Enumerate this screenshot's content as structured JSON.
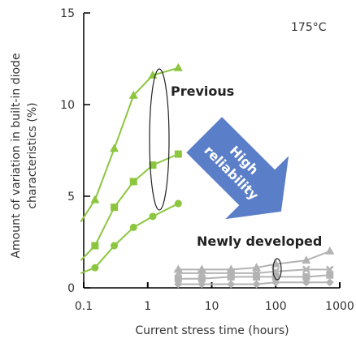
{
  "chart_data": {
    "type": "line",
    "xlabel": "Current stress time (hours)",
    "ylabel_line1": "Amount of variation in built-in diode",
    "ylabel_line2": "characteristics (%)",
    "x_scale": "log",
    "xlim": [
      0.1,
      1000
    ],
    "ylim": [
      0,
      15
    ],
    "x_ticks": [
      "0.1",
      "1",
      "10",
      "100",
      "1000"
    ],
    "y_ticks": [
      "0",
      "5",
      "10",
      "15"
    ],
    "grid": false,
    "annotations": {
      "temperature": "175°C",
      "previous": "Previous",
      "newly": "Newly developed",
      "arrow_line1": "High",
      "arrow_line2": "reliability"
    },
    "colors": {
      "previous": "#8cc63f",
      "newly": "#b3b3b3",
      "arrow": "#5b7ec9"
    },
    "series": [
      {
        "group": "previous",
        "marker": "triangle",
        "x": [
          0.09,
          0.15,
          0.3,
          0.6,
          1.2,
          3
        ],
        "y": [
          3.6,
          4.8,
          7.6,
          10.5,
          11.6,
          12.0
        ]
      },
      {
        "group": "previous",
        "marker": "square",
        "x": [
          0.09,
          0.15,
          0.3,
          0.6,
          1.2,
          3
        ],
        "y": [
          1.5,
          2.3,
          4.4,
          5.8,
          6.7,
          7.3
        ]
      },
      {
        "group": "previous",
        "marker": "circle",
        "x": [
          0.09,
          0.15,
          0.3,
          0.6,
          1.2,
          3
        ],
        "y": [
          0.8,
          1.1,
          2.3,
          3.3,
          3.9,
          4.6
        ]
      },
      {
        "group": "newly",
        "marker": "triangle",
        "x": [
          3,
          7,
          20,
          50,
          100,
          300,
          700
        ],
        "y": [
          1.0,
          1.0,
          1.0,
          1.1,
          1.3,
          1.5,
          2.0
        ]
      },
      {
        "group": "newly",
        "marker": "x",
        "x": [
          3,
          7,
          20,
          50,
          100,
          300,
          700
        ],
        "y": [
          0.8,
          0.8,
          0.8,
          0.8,
          0.9,
          1.0,
          1.0
        ]
      },
      {
        "group": "newly",
        "marker": "square",
        "x": [
          3,
          7,
          20,
          50,
          100,
          300,
          700
        ],
        "y": [
          0.5,
          0.5,
          0.6,
          0.6,
          0.6,
          0.6,
          0.7
        ]
      },
      {
        "group": "newly",
        "marker": "diamond",
        "x": [
          3,
          7,
          20,
          50,
          100,
          300,
          700
        ],
        "y": [
          0.2,
          0.2,
          0.2,
          0.2,
          0.3,
          0.3,
          0.3
        ]
      }
    ]
  }
}
